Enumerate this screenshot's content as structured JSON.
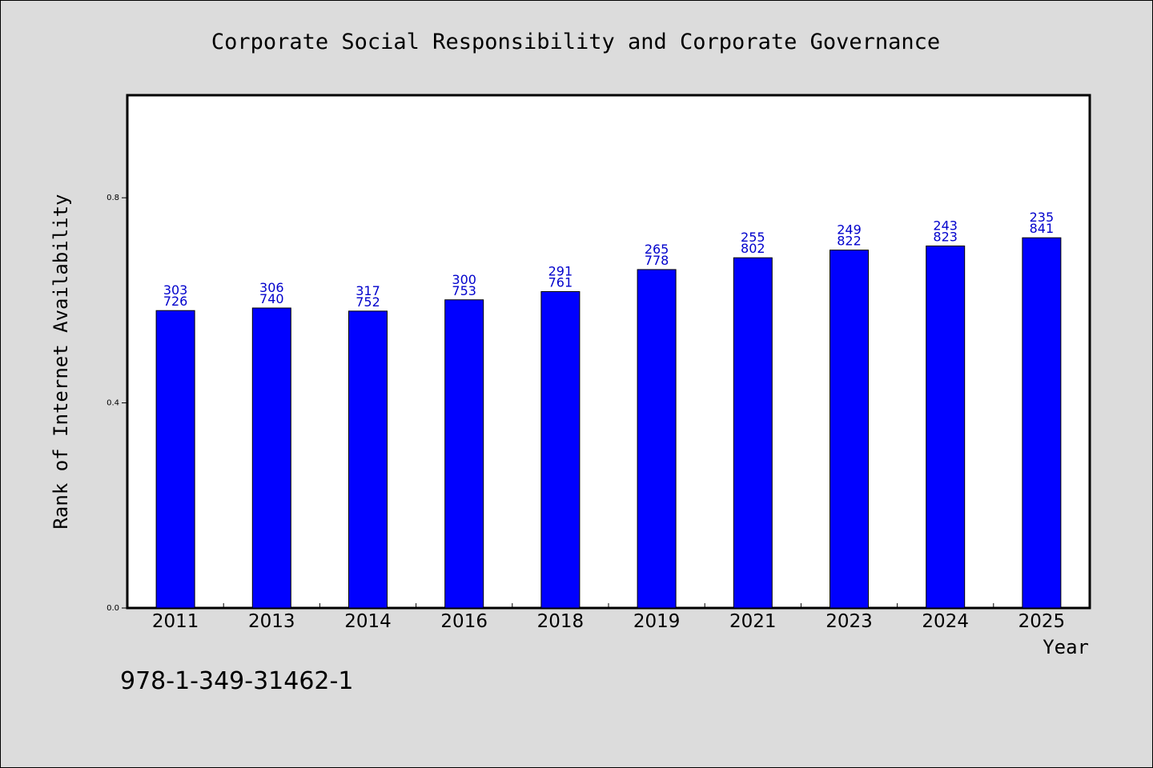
{
  "chart_data": {
    "type": "bar",
    "title": "Corporate Social Responsibility and Corporate Governance",
    "xlabel": "Year",
    "ylabel": "Rank of Internet Availability",
    "ylim": [
      0,
      1
    ],
    "y_ticks": [
      {
        "value": 0.0,
        "label": "0.0"
      },
      {
        "value": 0.4,
        "label": "0.4"
      },
      {
        "value": 0.8,
        "label": "0.8"
      }
    ],
    "grid": false,
    "legend": "none",
    "categories": [
      "2011",
      "2013",
      "2014",
      "2016",
      "2018",
      "2019",
      "2021",
      "2023",
      "2024",
      "2025"
    ],
    "values": [
      0.58,
      0.585,
      0.579,
      0.601,
      0.617,
      0.66,
      0.683,
      0.698,
      0.706,
      0.722
    ],
    "annotations": [
      [
        "303",
        "726"
      ],
      [
        "306",
        "740"
      ],
      [
        "317",
        "752"
      ],
      [
        "300",
        "753"
      ],
      [
        "291",
        "761"
      ],
      [
        "265",
        "778"
      ],
      [
        "255",
        "802"
      ],
      [
        "249",
        "822"
      ],
      [
        "243",
        "823"
      ],
      [
        "235",
        "841"
      ]
    ],
    "colors": {
      "bar": "#0000ff",
      "bar_edge": "#000000",
      "annotation": "#0000cc",
      "plot_background": "#ffffff",
      "figure_background": "#dcdcdc"
    }
  },
  "footer": {
    "code": "978-1-349-31462-1"
  }
}
